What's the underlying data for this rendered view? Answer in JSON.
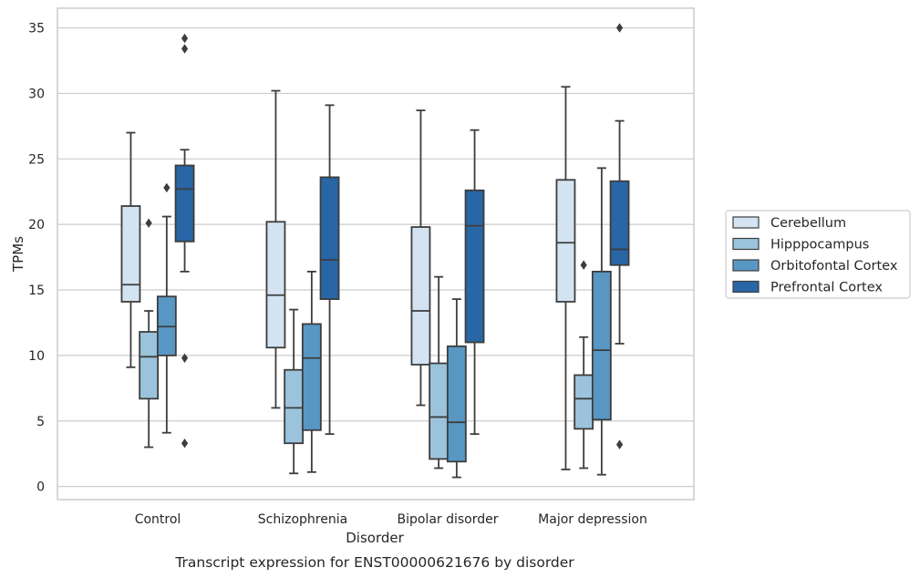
{
  "chart_data": {
    "type": "boxplot",
    "title": "",
    "caption": "Transcript expression for ENST00000621676 by disorder",
    "xlabel": "Disorder",
    "ylabel": "TPMs",
    "ylim": [
      -1,
      36.5
    ],
    "yticks": [
      0,
      5,
      10,
      15,
      20,
      25,
      30,
      35
    ],
    "grid": "horizontal",
    "legend_position": "right",
    "categories": [
      "Control",
      "Schizophrenia",
      "Bipolar disorder",
      "Major depression"
    ],
    "series": [
      {
        "name": "Cerebellum",
        "color": "#d3e3f1",
        "boxes": [
          {
            "whislo": 9.1,
            "q1": 14.1,
            "med": 15.4,
            "q3": 21.4,
            "whishi": 27.0,
            "fliers": []
          },
          {
            "whislo": 6.0,
            "q1": 10.6,
            "med": 14.6,
            "q3": 20.2,
            "whishi": 30.2,
            "fliers": []
          },
          {
            "whislo": 6.2,
            "q1": 9.3,
            "med": 13.4,
            "q3": 19.8,
            "whishi": 28.7,
            "fliers": []
          },
          {
            "whislo": 1.3,
            "q1": 14.1,
            "med": 18.6,
            "q3": 23.4,
            "whishi": 30.5,
            "fliers": []
          }
        ]
      },
      {
        "name": "Hipppocampus",
        "color": "#9cc3dc",
        "boxes": [
          {
            "whislo": 3.0,
            "q1": 6.7,
            "med": 9.9,
            "q3": 11.8,
            "whishi": 13.4,
            "fliers": [
              20.1
            ]
          },
          {
            "whislo": 1.0,
            "q1": 3.3,
            "med": 6.0,
            "q3": 8.9,
            "whishi": 13.5,
            "fliers": []
          },
          {
            "whislo": 1.4,
            "q1": 2.1,
            "med": 5.3,
            "q3": 9.4,
            "whishi": 16.0,
            "fliers": []
          },
          {
            "whislo": 1.4,
            "q1": 4.4,
            "med": 6.7,
            "q3": 8.5,
            "whishi": 11.4,
            "fliers": [
              16.9
            ]
          }
        ]
      },
      {
        "name": "Orbitofontal Cortex",
        "color": "#5897c4",
        "boxes": [
          {
            "whislo": 4.1,
            "q1": 10.0,
            "med": 12.2,
            "q3": 14.5,
            "whishi": 20.6,
            "fliers": [
              22.8
            ]
          },
          {
            "whislo": 1.1,
            "q1": 4.3,
            "med": 9.8,
            "q3": 12.4,
            "whishi": 16.4,
            "fliers": []
          },
          {
            "whislo": 0.7,
            "q1": 1.9,
            "med": 4.9,
            "q3": 10.7,
            "whishi": 14.3,
            "fliers": []
          },
          {
            "whislo": 0.9,
            "q1": 5.1,
            "med": 10.4,
            "q3": 16.4,
            "whishi": 24.3,
            "fliers": []
          }
        ]
      },
      {
        "name": "Prefrontal Cortex",
        "color": "#2866a5",
        "boxes": [
          {
            "whislo": 16.4,
            "q1": 18.7,
            "med": 22.7,
            "q3": 24.5,
            "whishi": 25.7,
            "fliers": [
              9.8,
              3.3,
              33.4,
              34.2
            ]
          },
          {
            "whislo": 4.0,
            "q1": 14.3,
            "med": 17.3,
            "q3": 23.6,
            "whishi": 29.1,
            "fliers": []
          },
          {
            "whislo": 4.0,
            "q1": 11.0,
            "med": 19.9,
            "q3": 22.6,
            "whishi": 27.2,
            "fliers": []
          },
          {
            "whislo": 10.9,
            "q1": 16.9,
            "med": 18.1,
            "q3": 23.3,
            "whishi": 27.9,
            "fliers": [
              3.2,
              35.0
            ]
          }
        ]
      }
    ]
  }
}
